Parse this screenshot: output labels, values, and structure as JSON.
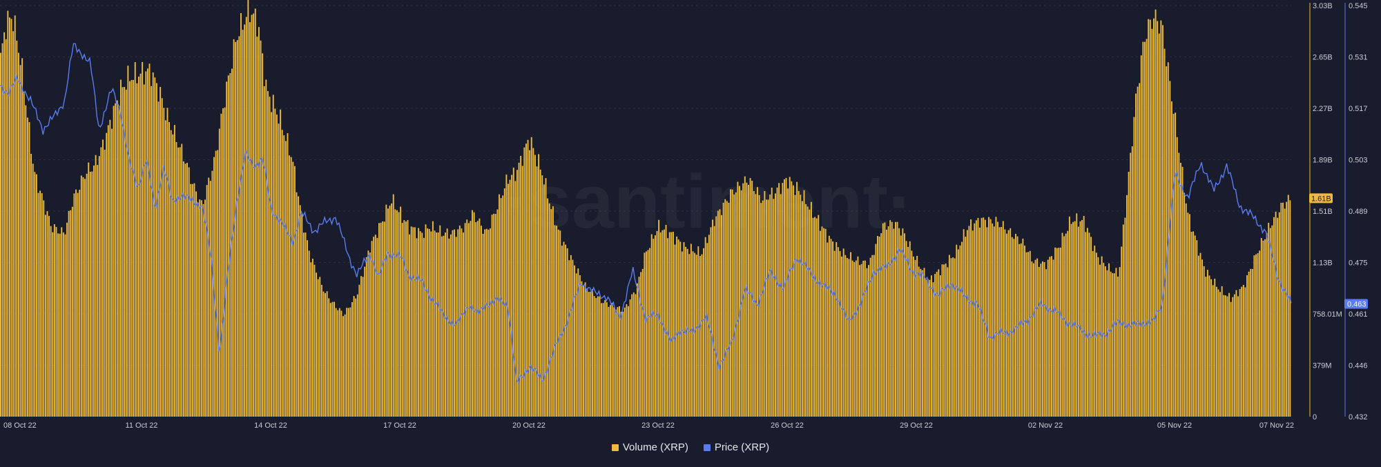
{
  "colors": {
    "background": "#191c2c",
    "volume": "#efbb3b",
    "price": "#5b7cf0",
    "grid": "#2b2f42",
    "axis_text": "#c9ccd6"
  },
  "watermark": "·santiment·",
  "legend": {
    "volume_label": "Volume (XRP)",
    "price_label": "Price (XRP)"
  },
  "chart_data": {
    "type": "area",
    "title": "",
    "x_range": [
      "08 Oct 22",
      "07 Nov 22"
    ],
    "x_tick_labels": [
      "08 Oct 22",
      "11 Oct 22",
      "14 Oct 22",
      "17 Oct 22",
      "20 Oct 22",
      "23 Oct 22",
      "26 Oct 22",
      "29 Oct 22",
      "02 Nov 22",
      "05 Nov 22",
      "07 Nov 22"
    ],
    "volume_axis": {
      "ylim": [
        0,
        3030000000
      ],
      "tick_labels": [
        "0",
        "379M",
        "758.01M",
        "1.13B",
        "1.51B",
        "1.89B",
        "2.27B",
        "2.65B",
        "3.03B"
      ]
    },
    "price_axis": {
      "ylim": [
        0.432,
        0.545
      ],
      "tick_labels": [
        "0.432",
        "0.446",
        "0.461",
        "0.475",
        "0.489",
        "0.503",
        "0.517",
        "0.531",
        "0.545"
      ]
    },
    "current_volume_label": "1.61B",
    "current_price_label": "0.463",
    "series": [
      {
        "name": "Volume (XRP)",
        "axis": "left",
        "style": "bars",
        "x_days": [
          0.0,
          0.15,
          0.3,
          0.5,
          0.8,
          1.0,
          1.2,
          1.5,
          1.7,
          2.0,
          2.2,
          2.4,
          2.6,
          2.8,
          3.0,
          3.2,
          3.5,
          3.7,
          3.9,
          4.3,
          4.5,
          4.7,
          5.0,
          5.2,
          5.5,
          5.8,
          6.0,
          6.2,
          6.5,
          6.8,
          7.0,
          7.2,
          7.5,
          7.7,
          8.0,
          8.3,
          8.6,
          8.9,
          9.1,
          9.3,
          9.5,
          9.8,
          10.0,
          10.3,
          10.5,
          10.8,
          11.0,
          11.3,
          11.5,
          11.8,
          12.0,
          12.3,
          12.6,
          12.8,
          13.0,
          13.3,
          13.6,
          14.0,
          14.5,
          14.8,
          15.0,
          15.3,
          15.6,
          15.9,
          16.3,
          16.6,
          16.9,
          17.0,
          17.4,
          17.7,
          18.0,
          18.3,
          18.6,
          19.0,
          19.3,
          19.6,
          19.9,
          20.2,
          20.5,
          20.8,
          21.0,
          21.3,
          21.6,
          21.9,
          22.2,
          22.5,
          22.8,
          23.2,
          23.5,
          23.8,
          24.0,
          24.3,
          24.6,
          24.9,
          25.2,
          25.5,
          25.8,
          26.0,
          26.2,
          26.4,
          26.6,
          26.8,
          27.0,
          27.3,
          27.6,
          28.0,
          28.3,
          28.6,
          28.9,
          29.2,
          29.5,
          29.8,
          30.0
        ],
        "values": [
          2600000000,
          2900000000,
          2950000000,
          2600000000,
          1800000000,
          1600000000,
          1400000000,
          1350000000,
          1600000000,
          1800000000,
          1850000000,
          2000000000,
          2200000000,
          2400000000,
          2500000000,
          2520000000,
          2550000000,
          2400000000,
          2200000000,
          1900000000,
          1700000000,
          1550000000,
          1900000000,
          2300000000,
          2800000000,
          3000000000,
          2900000000,
          2400000000,
          2200000000,
          1900000000,
          1500000000,
          1200000000,
          950000000,
          850000000,
          750000000,
          900000000,
          1250000000,
          1450000000,
          1600000000,
          1500000000,
          1400000000,
          1350000000,
          1400000000,
          1350000000,
          1350000000,
          1400000000,
          1500000000,
          1350000000,
          1500000000,
          1750000000,
          1800000000,
          2050000000,
          1800000000,
          1550000000,
          1350000000,
          1150000000,
          960000000,
          850000000,
          780000000,
          950000000,
          1200000000,
          1400000000,
          1350000000,
          1250000000,
          1200000000,
          1450000000,
          1600000000,
          1650000000,
          1750000000,
          1600000000,
          1650000000,
          1750000000,
          1650000000,
          1450000000,
          1300000000,
          1200000000,
          1150000000,
          1120000000,
          1400000000,
          1430000000,
          1350000000,
          1150000000,
          1000000000,
          1100000000,
          1200000000,
          1400000000,
          1450000000,
          1430000000,
          1350000000,
          1270000000,
          1150000000,
          1120000000,
          1250000000,
          1450000000,
          1440000000,
          1180000000,
          1080000000,
          1050000000,
          1680000000,
          2350000000,
          2800000000,
          2950000000,
          2880000000,
          2200000000,
          1500000000,
          1080000000,
          950000000,
          870000000,
          960000000,
          1200000000,
          1400000000,
          1560000000,
          1610000000
        ]
      },
      {
        "name": "Price (XRP)",
        "axis": "right",
        "style": "line",
        "x_days": [
          0.0,
          0.2,
          0.4,
          0.7,
          1.0,
          1.3,
          1.5,
          1.7,
          1.9,
          2.1,
          2.3,
          2.6,
          2.8,
          3.0,
          3.2,
          3.4,
          3.6,
          3.8,
          4.0,
          4.2,
          4.5,
          4.7,
          4.9,
          5.1,
          5.3,
          5.5,
          5.7,
          5.9,
          6.1,
          6.3,
          6.5,
          6.8,
          7.0,
          7.3,
          7.5,
          7.8,
          8.1,
          8.3,
          8.6,
          8.8,
          9.0,
          9.3,
          9.5,
          9.8,
          10.0,
          10.3,
          10.6,
          10.9,
          11.1,
          11.3,
          11.6,
          11.8,
          12.0,
          12.3,
          12.6,
          12.9,
          13.2,
          13.5,
          13.8,
          14.1,
          14.4,
          14.7,
          15.0,
          15.3,
          15.6,
          15.8,
          16.1,
          16.4,
          16.7,
          17.0,
          17.3,
          17.6,
          17.9,
          18.2,
          18.5,
          18.8,
          19.1,
          19.4,
          19.7,
          20.0,
          20.3,
          20.6,
          20.9,
          21.2,
          21.5,
          21.8,
          22.1,
          22.4,
          22.7,
          23.0,
          23.3,
          23.6,
          23.9,
          24.2,
          24.5,
          24.8,
          25.1,
          25.4,
          25.7,
          26.0,
          26.3,
          26.6,
          26.8,
          27.0,
          27.3,
          27.6,
          27.9,
          28.2,
          28.5,
          28.8,
          29.1,
          29.4,
          29.7,
          30.0
        ],
        "values": [
          0.523,
          0.521,
          0.525,
          0.519,
          0.511,
          0.515,
          0.519,
          0.534,
          0.532,
          0.529,
          0.511,
          0.522,
          0.516,
          0.502,
          0.495,
          0.503,
          0.489,
          0.501,
          0.491,
          0.493,
          0.491,
          0.49,
          0.476,
          0.449,
          0.472,
          0.491,
          0.504,
          0.501,
          0.503,
          0.489,
          0.486,
          0.48,
          0.488,
          0.483,
          0.485,
          0.487,
          0.476,
          0.471,
          0.477,
          0.47,
          0.477,
          0.476,
          0.471,
          0.469,
          0.465,
          0.46,
          0.457,
          0.463,
          0.46,
          0.463,
          0.464,
          0.463,
          0.441,
          0.446,
          0.442,
          0.451,
          0.459,
          0.469,
          0.466,
          0.465,
          0.459,
          0.472,
          0.459,
          0.46,
          0.452,
          0.456,
          0.455,
          0.46,
          0.446,
          0.452,
          0.467,
          0.463,
          0.472,
          0.467,
          0.476,
          0.472,
          0.468,
          0.466,
          0.458,
          0.463,
          0.472,
          0.473,
          0.478,
          0.472,
          0.47,
          0.465,
          0.469,
          0.465,
          0.463,
          0.454,
          0.455,
          0.456,
          0.459,
          0.463,
          0.461,
          0.458,
          0.456,
          0.454,
          0.455,
          0.458,
          0.457,
          0.458,
          0.458,
          0.463,
          0.499,
          0.492,
          0.502,
          0.494,
          0.501,
          0.49,
          0.487,
          0.483,
          0.47,
          0.463
        ]
      }
    ]
  }
}
